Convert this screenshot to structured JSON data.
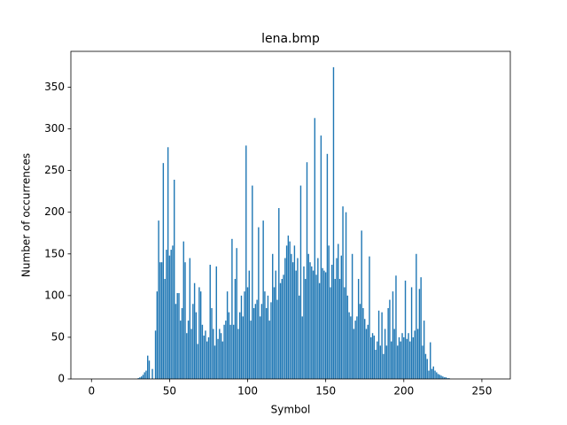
{
  "chart_data": {
    "type": "bar",
    "title": "lena.bmp",
    "xlabel": "Symbol",
    "ylabel": "Number of occurrences",
    "color": "#1f77b4",
    "x": [
      0,
      1,
      2,
      3,
      4,
      5,
      6,
      7,
      8,
      9,
      10,
      11,
      12,
      13,
      14,
      15,
      16,
      17,
      18,
      19,
      20,
      21,
      22,
      23,
      24,
      25,
      26,
      27,
      28,
      29,
      30,
      31,
      32,
      33,
      34,
      35,
      36,
      37,
      38,
      39,
      40,
      41,
      42,
      43,
      44,
      45,
      46,
      47,
      48,
      49,
      50,
      51,
      52,
      53,
      54,
      55,
      56,
      57,
      58,
      59,
      60,
      61,
      62,
      63,
      64,
      65,
      66,
      67,
      68,
      69,
      70,
      71,
      72,
      73,
      74,
      75,
      76,
      77,
      78,
      79,
      80,
      81,
      82,
      83,
      84,
      85,
      86,
      87,
      88,
      89,
      90,
      91,
      92,
      93,
      94,
      95,
      96,
      97,
      98,
      99,
      100,
      101,
      102,
      103,
      104,
      105,
      106,
      107,
      108,
      109,
      110,
      111,
      112,
      113,
      114,
      115,
      116,
      117,
      118,
      119,
      120,
      121,
      122,
      123,
      124,
      125,
      126,
      127,
      128,
      129,
      130,
      131,
      132,
      133,
      134,
      135,
      136,
      137,
      138,
      139,
      140,
      141,
      142,
      143,
      144,
      145,
      146,
      147,
      148,
      149,
      150,
      151,
      152,
      153,
      154,
      155,
      156,
      157,
      158,
      159,
      160,
      161,
      162,
      163,
      164,
      165,
      166,
      167,
      168,
      169,
      170,
      171,
      172,
      173,
      174,
      175,
      176,
      177,
      178,
      179,
      180,
      181,
      182,
      183,
      184,
      185,
      186,
      187,
      188,
      189,
      190,
      191,
      192,
      193,
      194,
      195,
      196,
      197,
      198,
      199,
      200,
      201,
      202,
      203,
      204,
      205,
      206,
      207,
      208,
      209,
      210,
      211,
      212,
      213,
      214,
      215,
      216,
      217,
      218,
      219,
      220,
      221,
      222,
      223,
      224,
      225,
      226,
      227,
      228,
      229,
      230,
      231,
      232,
      233,
      234,
      235,
      236,
      237,
      238,
      239,
      240,
      241,
      242,
      243,
      244,
      245,
      246,
      247,
      248,
      249,
      250,
      251,
      252,
      253,
      254,
      255
    ],
    "values": [
      0,
      0,
      0,
      0,
      0,
      0,
      0,
      0,
      0,
      0,
      0,
      0,
      0,
      0,
      0,
      0,
      0,
      0,
      0,
      0,
      0,
      0,
      0,
      0,
      0,
      0,
      0,
      0,
      0,
      0,
      1,
      2,
      3,
      5,
      8,
      10,
      28,
      22,
      0,
      12,
      0,
      58,
      105,
      190,
      140,
      140,
      259,
      120,
      155,
      278,
      148,
      155,
      160,
      239,
      90,
      103,
      103,
      70,
      85,
      165,
      140,
      55,
      70,
      145,
      60,
      90,
      115,
      80,
      42,
      110,
      105,
      65,
      52,
      58,
      45,
      50,
      137,
      85,
      60,
      40,
      135,
      48,
      60,
      55,
      45,
      65,
      70,
      105,
      80,
      65,
      168,
      65,
      120,
      157,
      60,
      80,
      100,
      75,
      105,
      280,
      110,
      130,
      70,
      232,
      85,
      90,
      95,
      182,
      75,
      90,
      190,
      105,
      85,
      100,
      70,
      92,
      150,
      110,
      130,
      95,
      205,
      115,
      120,
      125,
      145,
      160,
      172,
      165,
      150,
      140,
      160,
      130,
      145,
      100,
      232,
      75,
      135,
      120,
      260,
      150,
      140,
      135,
      130,
      313,
      125,
      145,
      115,
      292,
      133,
      130,
      128,
      270,
      160,
      110,
      137,
      374,
      120,
      145,
      162,
      120,
      148,
      207,
      110,
      200,
      100,
      80,
      75,
      150,
      60,
      70,
      75,
      120,
      90,
      178,
      85,
      72,
      60,
      65,
      147,
      50,
      55,
      52,
      35,
      45,
      82,
      40,
      80,
      30,
      60,
      40,
      85,
      95,
      45,
      105,
      60,
      124,
      40,
      50,
      45,
      55,
      50,
      118,
      48,
      55,
      45,
      110,
      50,
      58,
      150,
      60,
      108,
      122,
      40,
      70,
      30,
      24,
      10,
      44,
      12,
      15,
      10,
      8,
      6,
      5,
      4,
      3,
      2,
      2,
      1,
      1,
      0,
      0,
      0,
      0,
      0,
      0,
      0,
      0,
      0,
      0,
      0,
      0,
      0,
      0,
      0,
      0,
      0,
      0,
      0,
      0,
      0,
      0,
      0,
      0,
      0,
      0
    ],
    "xlim": [
      -13.2,
      268.2
    ],
    "xticks": [
      0,
      50,
      100,
      150,
      200,
      250
    ],
    "ylim": [
      0,
      393
    ],
    "yticks": [
      0,
      50,
      100,
      150,
      200,
      250,
      300,
      350
    ]
  }
}
